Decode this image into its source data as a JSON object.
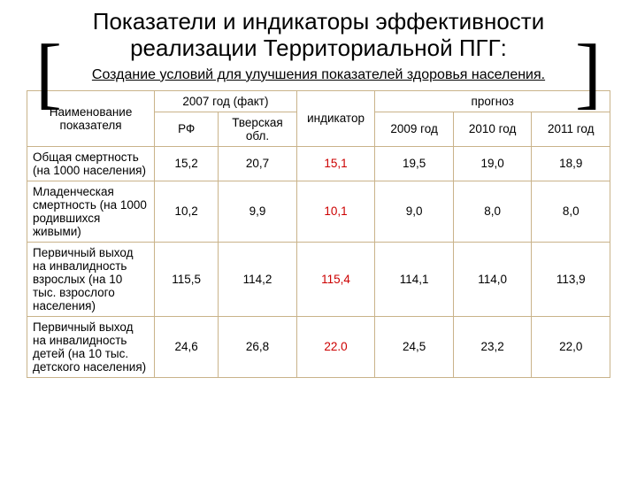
{
  "title": "Показатели и индикаторы эффективности реализации Территориальной ПГГ:",
  "subtitle": "Создание условий для улучшения показателей здоровья населения.",
  "table": {
    "headers": {
      "name": "Наименование показателя",
      "fact": "2007 год (факт)",
      "rf": "РФ",
      "tver": "Тверская обл.",
      "indicator": "индикатор",
      "forecast": "прогноз",
      "y2009": "2009 год",
      "y2010": "2010 год",
      "y2011": "2011 год"
    },
    "rows": [
      {
        "label": "Общая смертность (на 1000 населения)",
        "rf": "15,2",
        "tver": "20,7",
        "indicator": "15,1",
        "y2009": "19,5",
        "y2010": "19,0",
        "y2011": "18,9"
      },
      {
        "label": "Младенческая смертность (на 1000 родившихся живыми)",
        "rf": "10,2",
        "tver": "9,9",
        "indicator": "10,1",
        "y2009": "9,0",
        "y2010": "8,0",
        "y2011": "8,0"
      },
      {
        "label": "Первичный выход на инвалидность взрослых (на 10 тыс. взрослого населения)",
        "rf": "115,5",
        "tver": "114,2",
        "indicator": "115,4",
        "y2009": "114,1",
        "y2010": "114,0",
        "y2011": "113,9"
      },
      {
        "label": "Первичный выход на инвалидность детей (на 10 тыс. детского населения)",
        "rf": "24,6",
        "tver": "26,8",
        "indicator": "22.0",
        "y2009": "24,5",
        "y2010": "23,2",
        "y2011": "22,0"
      }
    ]
  },
  "colors": {
    "border": "#c9b38a",
    "indicator_text": "#cc0000"
  }
}
